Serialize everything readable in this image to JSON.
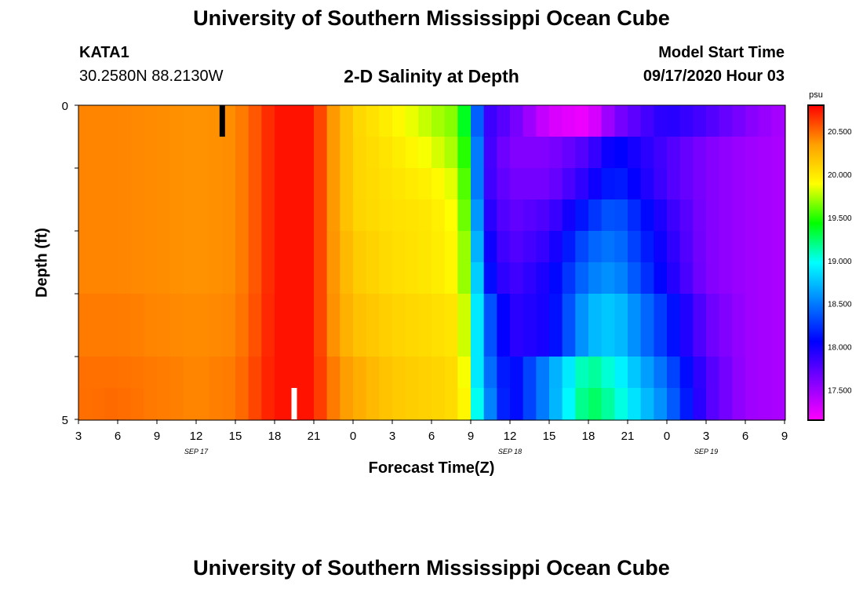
{
  "header": {
    "title_top": "University of Southern Mississippi Ocean Cube",
    "station_id": "KATA1",
    "station_coords": "30.2580N 88.2130W",
    "plot_title": "2-D Salinity at Depth",
    "model_start_label": "Model Start Time",
    "model_start_value": "09/17/2020 Hour 03",
    "title_bottom": "University of Southern Mississippi Ocean Cube"
  },
  "colors": {
    "colormap": [
      "#ff00ff",
      "#8000ff",
      "#0000ff",
      "#0080ff",
      "#00ffff",
      "#00ff00",
      "#ffff00",
      "#ffa000",
      "#ff0000"
    ],
    "marker_now": "#000000",
    "marker_obs": "#ffffff"
  },
  "chart_data": {
    "type": "heatmap",
    "title": "2-D Salinity at Depth",
    "xlabel": "Forecast Time(Z)",
    "ylabel": "Depth (ft)",
    "x_tick_labels": [
      "3",
      "6",
      "9",
      "12",
      "15",
      "18",
      "21",
      "0",
      "3",
      "6",
      "9",
      "12",
      "15",
      "18",
      "21",
      "0",
      "3",
      "6",
      "9"
    ],
    "date_labels": [
      {
        "text": "SEP 17",
        "at_tick": 3
      },
      {
        "text": "SEP 18",
        "at_tick": 11
      },
      {
        "text": "SEP 19",
        "at_tick": 16
      }
    ],
    "y_tick_labels": [
      "0",
      "5"
    ],
    "depth_range_ft": [
      0,
      5
    ],
    "time_range": [
      "09/17/2020 03Z",
      "09/19/2020 09Z"
    ],
    "colorbar": {
      "unit": "psu",
      "min": 17.15,
      "max": 20.8,
      "ticks": [
        "17.500",
        "18.000",
        "18.500",
        "19.000",
        "19.500",
        "20.000",
        "20.500"
      ],
      "tick_values": [
        17.5,
        18.0,
        18.5,
        19.0,
        19.5,
        20.0,
        20.5
      ]
    },
    "depth_levels_ft": [
      0,
      0.5,
      1,
      1.5,
      2,
      2.5,
      3,
      3.5,
      4,
      4.5
    ],
    "hours": [
      3,
      6,
      9,
      12,
      15,
      18,
      21,
      24,
      27,
      30,
      33,
      36,
      39,
      42,
      45,
      48,
      51,
      54,
      57
    ],
    "profiles": [
      {
        "hours": [
          3,
          6,
          9,
          12,
          15,
          17,
          18,
          21,
          22,
          24,
          27,
          30,
          32,
          33,
          33.5,
          34,
          36,
          39,
          42,
          44,
          48,
          51,
          54,
          57
        ],
        "values": [
          20.42,
          20.42,
          20.4,
          20.38,
          20.4,
          20.6,
          20.75,
          20.75,
          20.45,
          20.1,
          19.95,
          19.75,
          19.65,
          19.1,
          18.4,
          17.9,
          17.7,
          17.3,
          17.2,
          17.6,
          17.95,
          17.8,
          17.6,
          17.45
        ]
      },
      {
        "hours": [
          3,
          6,
          9,
          12,
          15,
          17,
          18,
          21,
          22,
          24,
          27,
          30,
          32,
          33,
          33.5,
          34,
          36,
          39,
          42,
          44,
          48,
          51,
          54,
          57
        ],
        "values": [
          20.42,
          20.42,
          20.4,
          20.38,
          20.4,
          20.6,
          20.75,
          20.75,
          20.45,
          20.1,
          20.0,
          19.85,
          19.7,
          19.3,
          18.5,
          17.9,
          17.6,
          17.6,
          17.8,
          18.1,
          17.8,
          17.6,
          17.5,
          17.45
        ]
      },
      {
        "hours": [
          3,
          6,
          9,
          12,
          15,
          17,
          18,
          21,
          22,
          24,
          27,
          30,
          32,
          33,
          33.5,
          34,
          36,
          39,
          42,
          44,
          48,
          51,
          54,
          57
        ],
        "values": [
          20.42,
          20.42,
          20.4,
          20.38,
          20.4,
          20.6,
          20.75,
          20.75,
          20.45,
          20.1,
          20.02,
          19.95,
          19.8,
          19.35,
          18.5,
          17.9,
          17.65,
          17.65,
          17.95,
          18.2,
          17.8,
          17.6,
          17.5,
          17.45
        ]
      },
      {
        "hours": [
          3,
          6,
          9,
          12,
          15,
          17,
          18,
          21,
          22,
          24,
          27,
          30,
          32,
          33,
          33.5,
          34,
          36,
          39,
          42,
          44,
          48,
          51,
          54,
          57
        ],
        "values": [
          20.42,
          20.42,
          20.4,
          20.38,
          20.4,
          20.6,
          20.75,
          20.75,
          20.45,
          20.1,
          20.03,
          20.0,
          19.85,
          19.4,
          18.6,
          18.0,
          17.7,
          17.8,
          18.2,
          18.4,
          17.9,
          17.6,
          17.5,
          17.45
        ]
      },
      {
        "hours": [
          3,
          6,
          9,
          12,
          15,
          17,
          18,
          21,
          22,
          24,
          27,
          30,
          32,
          33,
          33.5,
          34,
          36,
          39,
          42,
          44,
          48,
          51,
          54,
          57
        ],
        "values": [
          20.42,
          20.42,
          20.4,
          20.38,
          20.4,
          20.6,
          20.75,
          20.75,
          20.45,
          20.15,
          20.05,
          20.0,
          19.9,
          19.5,
          18.7,
          18.1,
          17.75,
          17.9,
          18.4,
          18.5,
          17.95,
          17.6,
          17.5,
          17.45
        ]
      },
      {
        "hours": [
          3,
          6,
          9,
          12,
          15,
          17,
          18,
          21,
          22,
          24,
          27,
          30,
          32,
          33,
          33.5,
          34,
          36,
          39,
          42,
          44,
          48,
          51,
          54,
          57
        ],
        "values": [
          20.42,
          20.42,
          20.4,
          20.38,
          20.4,
          20.6,
          20.75,
          20.75,
          20.45,
          20.15,
          20.05,
          20.0,
          19.9,
          19.5,
          18.8,
          18.2,
          17.8,
          18.0,
          18.5,
          18.6,
          18.0,
          17.6,
          17.5,
          17.45
        ]
      },
      {
        "hours": [
          3,
          6,
          9,
          12,
          15,
          17,
          18,
          21,
          22,
          24,
          27,
          30,
          32,
          33,
          33.5,
          34,
          36,
          39,
          42,
          44,
          48,
          51,
          54,
          57
        ],
        "values": [
          20.45,
          20.45,
          20.42,
          20.4,
          20.42,
          20.62,
          20.75,
          20.75,
          20.45,
          20.2,
          20.1,
          20.05,
          20.0,
          19.6,
          18.9,
          18.5,
          17.9,
          18.0,
          18.7,
          18.8,
          18.2,
          17.7,
          17.5,
          17.45
        ]
      },
      {
        "hours": [
          3,
          6,
          9,
          12,
          15,
          17,
          18,
          21,
          22,
          24,
          27,
          30,
          32,
          33,
          33.5,
          34,
          36,
          39,
          42,
          44,
          48,
          51,
          54,
          57
        ],
        "values": [
          20.45,
          20.45,
          20.42,
          20.4,
          20.42,
          20.62,
          20.75,
          20.75,
          20.45,
          20.2,
          20.1,
          20.05,
          20.0,
          19.6,
          18.9,
          18.5,
          17.9,
          18.0,
          18.7,
          18.8,
          18.2,
          17.7,
          17.5,
          17.45
        ]
      },
      {
        "hours": [
          3,
          6,
          9,
          12,
          15,
          17,
          18,
          21,
          22,
          24,
          27,
          30,
          32,
          33,
          33.5,
          34,
          36,
          39,
          42,
          44,
          48,
          51,
          54,
          57
        ],
        "values": [
          20.48,
          20.48,
          20.45,
          20.42,
          20.45,
          20.65,
          20.75,
          20.75,
          20.5,
          20.3,
          20.15,
          20.1,
          20.05,
          19.7,
          18.9,
          18.6,
          18.0,
          18.6,
          19.2,
          19.0,
          18.4,
          17.8,
          17.5,
          17.45
        ]
      },
      {
        "hours": [
          3,
          6,
          9,
          12,
          15,
          17,
          18,
          21,
          22,
          24,
          27,
          30,
          32,
          33,
          33.5,
          34,
          36,
          39,
          42,
          44,
          48,
          51,
          54,
          57
        ],
        "values": [
          20.48,
          20.5,
          20.45,
          20.42,
          20.45,
          20.65,
          20.75,
          20.75,
          20.5,
          20.3,
          20.15,
          20.1,
          20.05,
          19.8,
          19.0,
          18.7,
          18.0,
          18.6,
          19.3,
          19.1,
          18.5,
          17.8,
          17.5,
          17.45
        ]
      }
    ],
    "markers": [
      {
        "type": "current-time",
        "hour": 14,
        "depth_from_ft": 0,
        "depth_to_ft": 0.5
      },
      {
        "type": "observation",
        "hour": 19.5,
        "depth_from_ft": 4.5,
        "depth_to_ft": 5
      }
    ]
  }
}
